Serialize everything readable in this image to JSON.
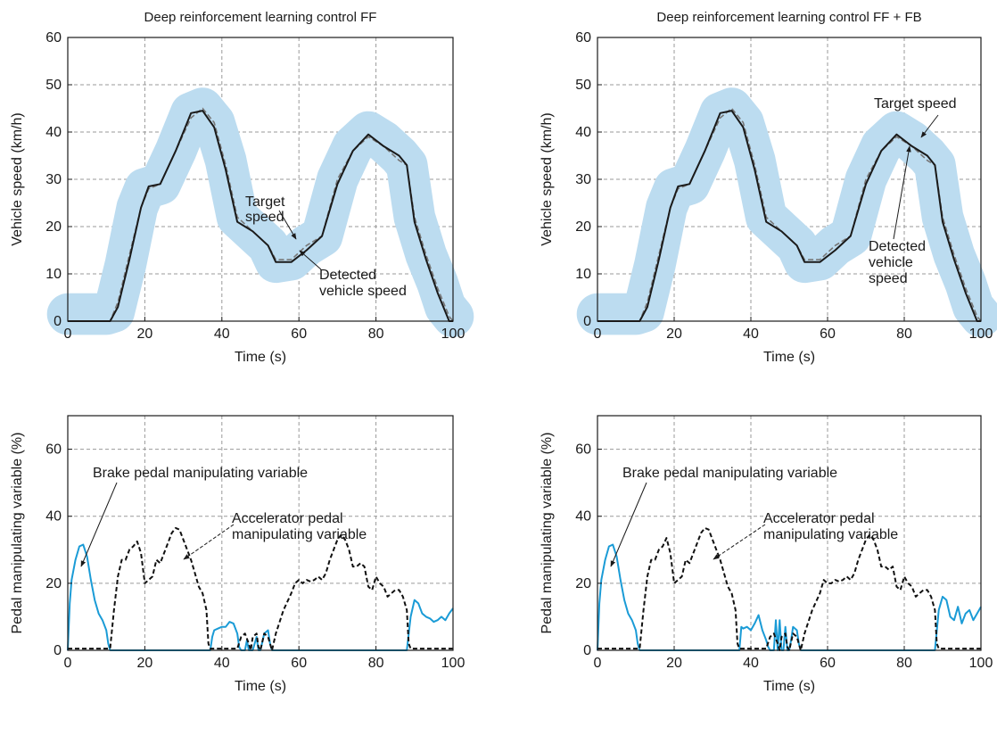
{
  "colors": {
    "detected": "#1a1a1a",
    "target": "#777777",
    "band": "#bcdcf0",
    "brake": "#1a9bd6",
    "accelerator": "#111111",
    "grid": "#9a9a9a"
  },
  "chart_data": [
    {
      "type": "line",
      "title": "Deep reinforcement learning control FF",
      "xlabel": "Time (s)",
      "ylabel": "Vehicle speed (km/h)",
      "xlim": [
        0,
        100
      ],
      "ylim": [
        0,
        60
      ],
      "xticks": [
        "0",
        "20",
        "40",
        "60",
        "80",
        "100"
      ],
      "yticks": [
        "0",
        "10",
        "20",
        "30",
        "40",
        "50",
        "60"
      ],
      "grid": true,
      "band": {
        "x": [
          0,
          10,
          12,
          15,
          18,
          20,
          24,
          28,
          32,
          35,
          38,
          41,
          44,
          48,
          52,
          54,
          58,
          62,
          66,
          70,
          74,
          78,
          82,
          86,
          88,
          90,
          93,
          96,
          98,
          100
        ],
        "y": [
          1.5,
          1.5,
          2,
          12,
          24,
          28,
          29,
          36,
          44,
          45,
          42,
          34,
          22,
          19,
          16,
          12.5,
          13,
          16,
          18,
          30,
          37,
          40,
          38,
          35,
          33,
          22,
          14,
          8,
          3,
          1
        ],
        "halfwidth": 2
      },
      "series": [
        {
          "name": "Target speed",
          "style": "dashed",
          "x": [
            0,
            11,
            13,
            16,
            19,
            21,
            24,
            28,
            32,
            35,
            38,
            41,
            44,
            48,
            52,
            54,
            58,
            62,
            66,
            70,
            74,
            78,
            82,
            86,
            88,
            90,
            93,
            96,
            99,
            100
          ],
          "y": [
            0,
            0,
            4,
            14,
            24,
            28,
            29,
            36,
            43,
            45,
            42,
            33,
            22,
            19,
            16,
            13,
            13,
            16,
            18,
            30,
            36,
            39,
            37,
            34,
            33,
            22,
            14,
            7,
            1,
            0
          ]
        },
        {
          "name": "Detected vehicle speed",
          "style": "solid",
          "x": [
            0,
            11,
            13,
            16,
            19,
            21,
            24,
            28,
            32,
            35,
            38,
            41,
            44,
            48,
            52,
            54,
            58,
            62,
            66,
            70,
            74,
            78,
            82,
            86,
            88,
            90,
            93,
            96,
            99,
            100
          ],
          "y": [
            0,
            0,
            3,
            13,
            24,
            28.5,
            29,
            36,
            44,
            44.5,
            41,
            32,
            21,
            19,
            16,
            12.5,
            12.5,
            15,
            18,
            29,
            36,
            39.5,
            37,
            35,
            33,
            21,
            13,
            6,
            0,
            0
          ]
        }
      ],
      "annotations": [
        {
          "text": [
            "Target",
            "speed"
          ],
          "point": [
            61,
            16.5
          ]
        },
        {
          "text": [
            "Detected",
            "vehicle speed"
          ],
          "point": [
            62,
            14
          ]
        }
      ]
    },
    {
      "type": "line",
      "title": "Deep reinforcement learning control FF + FB",
      "xlabel": "Time (s)",
      "ylabel": "Vehicle speed (km/h)",
      "xlim": [
        0,
        100
      ],
      "ylim": [
        0,
        60
      ],
      "xticks": [
        "0",
        "20",
        "40",
        "60",
        "80",
        "100"
      ],
      "yticks": [
        "0",
        "10",
        "20",
        "30",
        "40",
        "50",
        "60"
      ],
      "grid": true,
      "band": {
        "x": [
          0,
          10,
          12,
          15,
          18,
          20,
          24,
          28,
          32,
          35,
          38,
          41,
          44,
          48,
          52,
          54,
          58,
          62,
          66,
          70,
          74,
          78,
          82,
          86,
          88,
          90,
          93,
          96,
          98,
          100
        ],
        "y": [
          1.5,
          1.5,
          2,
          12,
          24,
          28,
          29,
          36,
          44,
          45,
          42,
          34,
          22,
          19,
          16,
          12.5,
          13,
          16,
          18,
          30,
          37,
          40,
          38,
          35,
          33,
          22,
          14,
          8,
          3,
          1
        ],
        "halfwidth": 2
      },
      "series": [
        {
          "name": "Target speed",
          "style": "dashed",
          "x": [
            0,
            11,
            13,
            16,
            19,
            21,
            24,
            28,
            32,
            35,
            38,
            41,
            44,
            48,
            52,
            54,
            58,
            62,
            66,
            70,
            74,
            78,
            82,
            86,
            88,
            90,
            93,
            96,
            99,
            100
          ],
          "y": [
            0,
            0,
            4,
            14,
            24,
            28,
            29,
            36,
            43,
            45,
            42,
            33,
            22,
            19,
            16,
            13,
            13,
            16,
            18,
            30,
            36,
            39,
            37,
            34,
            33,
            22,
            14,
            7,
            1,
            0
          ]
        },
        {
          "name": "Detected vehicle speed",
          "style": "solid",
          "x": [
            0,
            11,
            13,
            16,
            19,
            21,
            24,
            28,
            32,
            35,
            38,
            41,
            44,
            48,
            52,
            54,
            58,
            62,
            66,
            70,
            74,
            78,
            82,
            86,
            88,
            90,
            93,
            96,
            99,
            100
          ],
          "y": [
            0,
            0,
            3,
            13,
            24,
            28.5,
            29,
            36,
            44,
            44.5,
            41,
            32,
            21,
            19,
            16,
            12.5,
            12.5,
            15,
            18,
            29,
            36,
            39.5,
            37,
            35,
            33,
            21,
            13,
            6,
            0,
            0
          ]
        }
      ],
      "annotations": [
        {
          "text": [
            "Target speed"
          ],
          "point": [
            84,
            37
          ]
        },
        {
          "text": [
            "Detected",
            "vehicle",
            "speed"
          ],
          "point": [
            82,
            37
          ]
        }
      ]
    },
    {
      "type": "line",
      "title": "",
      "xlabel": "Time (s)",
      "ylabel": "Pedal manipulating variable (%)",
      "xlim": [
        0,
        100
      ],
      "ylim": [
        0,
        70
      ],
      "xticks": [
        "0",
        "20",
        "40",
        "60",
        "80",
        "100"
      ],
      "yticks": [
        "0",
        "20",
        "40",
        "60"
      ],
      "grid": true,
      "series": [
        {
          "name": "Brake pedal manipulating variable",
          "style": "solid",
          "x": [
            0,
            0.5,
            1,
            2,
            3,
            4,
            5,
            6,
            7,
            8,
            9,
            10,
            10.5,
            11,
            11.5,
            12,
            36,
            37,
            37.5,
            38,
            39,
            40,
            41,
            42,
            43,
            44,
            44.5,
            45,
            46,
            46.5,
            47,
            47.5,
            48,
            49,
            49.5,
            50,
            50.5,
            51,
            52,
            52.5,
            53,
            88,
            89,
            90,
            91,
            92,
            93,
            94,
            95,
            96,
            97,
            98,
            99,
            100
          ],
          "y": [
            0,
            14,
            21,
            27,
            31,
            31.5,
            28,
            21,
            15,
            11,
            9,
            6,
            2,
            0,
            0,
            0,
            0,
            0,
            4,
            6,
            6.5,
            7,
            7,
            8.5,
            8,
            5,
            1,
            0,
            0,
            3,
            0,
            0,
            0,
            4,
            0,
            0,
            2.5,
            5,
            6,
            2,
            0,
            0,
            10,
            15,
            14,
            11,
            10,
            9.5,
            8.5,
            9,
            10,
            9,
            11,
            12.5
          ]
        },
        {
          "name": "Accelerator pedal manipulating variable",
          "style": "dashed",
          "x": [
            0,
            10,
            11,
            12,
            13,
            14,
            15,
            16,
            17,
            18,
            19,
            20,
            21,
            22,
            23,
            24,
            25,
            26,
            27,
            28,
            29,
            30,
            31,
            32,
            33,
            34,
            35,
            36,
            36.5,
            37,
            44,
            45,
            46,
            47,
            47.5,
            48,
            49,
            49.5,
            50,
            51,
            52,
            53,
            54,
            56,
            58,
            59,
            60,
            61,
            62,
            63,
            64,
            65,
            66,
            67,
            68,
            69,
            70,
            71,
            72,
            73,
            74,
            75,
            76,
            77,
            78,
            79,
            80,
            81,
            82,
            83,
            84,
            85,
            86,
            87,
            88,
            88.5,
            89,
            100
          ],
          "y": [
            0.5,
            0.5,
            0.5,
            12,
            22,
            27,
            27,
            30,
            31,
            32.5,
            29,
            20,
            21,
            22,
            27,
            26,
            29,
            32,
            35,
            36.5,
            36,
            33,
            30,
            27,
            23,
            19,
            17,
            12,
            2,
            0.5,
            0.5,
            4,
            5,
            2,
            0,
            4,
            5,
            1,
            0,
            5,
            4,
            0,
            5,
            12,
            17,
            20,
            21,
            20,
            21,
            20.5,
            21,
            22,
            21,
            23,
            27,
            30,
            33,
            34.5,
            33,
            30,
            25,
            25,
            26,
            25,
            19,
            18,
            22,
            20,
            19,
            16,
            17,
            18,
            18,
            16,
            12,
            2,
            0.5,
            0.5
          ]
        }
      ],
      "annotations": [
        {
          "text": [
            "Brake pedal manipulating variable"
          ],
          "point": [
            4,
            31
          ]
        },
        {
          "text": [
            "Accelerator pedal",
            "manipulating variable"
          ],
          "point": [
            29,
            35
          ]
        }
      ]
    },
    {
      "type": "line",
      "title": "",
      "xlabel": "Time (s)",
      "ylabel": "Pedal manipulating variable (%)",
      "xlim": [
        0,
        100
      ],
      "ylim": [
        0,
        70
      ],
      "xticks": [
        "0",
        "20",
        "40",
        "60",
        "80",
        "100"
      ],
      "yticks": [
        "0",
        "20",
        "40",
        "60"
      ],
      "grid": true,
      "series": [
        {
          "name": "Brake pedal manipulating variable",
          "style": "solid",
          "x": [
            0,
            0.5,
            1,
            2,
            3,
            4,
            5,
            6,
            7,
            8,
            9,
            10,
            10.5,
            11,
            11.5,
            12,
            36,
            37,
            37.5,
            38,
            39,
            40,
            41,
            42,
            43,
            44,
            44.5,
            45,
            46,
            46.5,
            47,
            47.5,
            48,
            48.5,
            49,
            49.5,
            50,
            50.5,
            51,
            52,
            52.5,
            53,
            88,
            89,
            90,
            91,
            92,
            93,
            94,
            95,
            96,
            97,
            98,
            99,
            100
          ],
          "y": [
            0,
            14,
            21,
            27,
            31,
            31.5,
            28,
            21,
            15,
            11,
            9,
            6,
            2,
            0,
            0,
            0,
            0,
            0,
            7,
            6.5,
            7,
            6,
            8,
            10.5,
            6,
            3,
            1,
            0,
            0,
            9,
            0,
            9,
            0,
            0,
            7,
            0,
            0,
            3,
            7,
            6,
            2,
            0,
            0,
            12,
            16,
            15,
            10,
            9,
            13,
            8,
            11,
            12,
            9,
            11,
            13
          ]
        },
        {
          "name": "Accelerator pedal manipulating variable",
          "style": "dashed",
          "x": [
            0,
            10,
            11,
            12,
            13,
            14,
            15,
            16,
            17,
            18,
            19,
            20,
            21,
            22,
            23,
            24,
            25,
            26,
            27,
            28,
            29,
            30,
            31,
            32,
            33,
            34,
            35,
            36,
            36.5,
            37,
            44,
            45,
            46,
            47,
            47.5,
            48,
            49,
            49.5,
            50,
            51,
            52,
            53,
            54,
            56,
            58,
            59,
            60,
            61,
            62,
            63,
            64,
            65,
            66,
            67,
            68,
            69,
            70,
            71,
            72,
            73,
            74,
            75,
            76,
            77,
            78,
            79,
            80,
            81,
            82,
            83,
            84,
            85,
            86,
            87,
            88,
            88.5,
            89,
            100
          ],
          "y": [
            0.5,
            0.5,
            0.5,
            12,
            22,
            27,
            27,
            30,
            31,
            33.5,
            29,
            20,
            21,
            22,
            27,
            26,
            29,
            32,
            35,
            36.5,
            36,
            33,
            30,
            27,
            23,
            19,
            17,
            12,
            2,
            0.5,
            0.5,
            4,
            5,
            2,
            0,
            4,
            5,
            1,
            0,
            5,
            4,
            0,
            5,
            12,
            17,
            21,
            20,
            20,
            21,
            20.5,
            21,
            22,
            21,
            23,
            27,
            30,
            33,
            34.5,
            33,
            30,
            25,
            25,
            24,
            25,
            19,
            18,
            22,
            20,
            19,
            16,
            17,
            18,
            18,
            16,
            12,
            2,
            0.5,
            0.5
          ]
        }
      ],
      "annotations": [
        {
          "text": [
            "Brake pedal manipulating variable"
          ],
          "point": [
            4,
            31
          ]
        },
        {
          "text": [
            "Accelerator pedal",
            "manipulating variable"
          ],
          "point": [
            29,
            35
          ]
        }
      ]
    }
  ]
}
